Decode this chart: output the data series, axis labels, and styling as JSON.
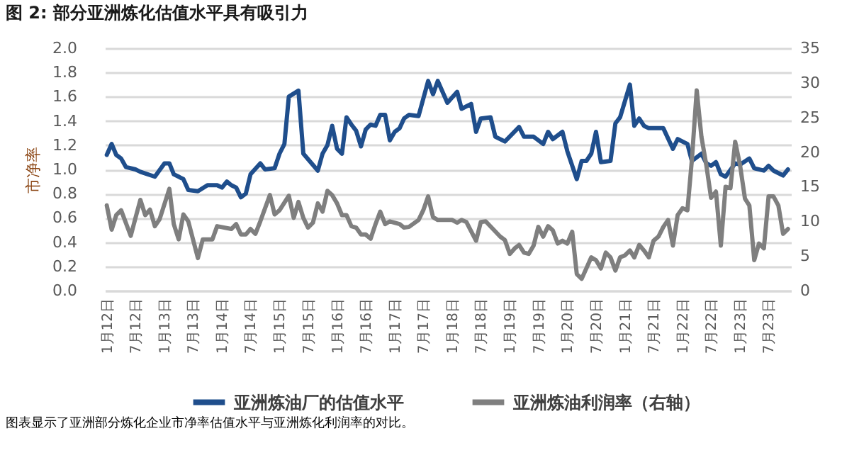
{
  "chart_data": {
    "type": "line",
    "title": "图 2: 部分亚洲炼化估值水平具有吸引力",
    "ylabel": "市净率",
    "annotations": [
      "图表显示了亚洲部分炼化企业市净率估值水平与亚洲炼化利润率的对比。"
    ],
    "xlim": [
      "2011-12-20",
      "2023-11-20"
    ],
    "xticks": [
      {
        "value": "2012-01-01",
        "label": "1月12日"
      },
      {
        "value": "2012-07-01",
        "label": "7月12日"
      },
      {
        "value": "2013-01-01",
        "label": "1月13日"
      },
      {
        "value": "2013-07-01",
        "label": "7月13日"
      },
      {
        "value": "2014-01-01",
        "label": "1月14日"
      },
      {
        "value": "2014-07-01",
        "label": "7月14日"
      },
      {
        "value": "2015-01-01",
        "label": "1月15日"
      },
      {
        "value": "2015-07-01",
        "label": "7月15日"
      },
      {
        "value": "2016-01-01",
        "label": "1月16日"
      },
      {
        "value": "2016-07-01",
        "label": "7月16日"
      },
      {
        "value": "2017-01-01",
        "label": "1月17日"
      },
      {
        "value": "2017-07-01",
        "label": "7月17日"
      },
      {
        "value": "2018-01-01",
        "label": "1月18日"
      },
      {
        "value": "2018-07-01",
        "label": "7月18日"
      },
      {
        "value": "2019-01-01",
        "label": "1月19日"
      },
      {
        "value": "2019-07-01",
        "label": "7月19日"
      },
      {
        "value": "2020-01-01",
        "label": "1月20日"
      },
      {
        "value": "2020-07-01",
        "label": "7月20日"
      },
      {
        "value": "2021-01-01",
        "label": "1月21日"
      },
      {
        "value": "2021-07-01",
        "label": "7月21日"
      },
      {
        "value": "2022-01-01",
        "label": "1月22日"
      },
      {
        "value": "2022-07-01",
        "label": "7月22日"
      },
      {
        "value": "2023-01-01",
        "label": "1月23日"
      },
      {
        "value": "2023-07-01",
        "label": "7月23日"
      }
    ],
    "ylim": [
      0,
      2
    ],
    "yticks": [
      {
        "value": 0,
        "label": "0.0"
      },
      {
        "value": 0.2,
        "label": "0.2"
      },
      {
        "value": 0.4,
        "label": "0.4"
      },
      {
        "value": 0.6,
        "label": "0.6"
      },
      {
        "value": 0.8,
        "label": "0.8"
      },
      {
        "value": 1,
        "label": "1.0"
      },
      {
        "value": 1.2,
        "label": "1.2"
      },
      {
        "value": 1.4,
        "label": "1.4"
      },
      {
        "value": 1.6,
        "label": "1.6"
      },
      {
        "value": 1.8,
        "label": "1.8"
      },
      {
        "value": 2,
        "label": "2.0"
      }
    ],
    "y2lim": [
      0,
      35
    ],
    "y2ticks": [
      0,
      5,
      10,
      15,
      20,
      25,
      30,
      35
    ],
    "grid": "y",
    "legend": "bottom",
    "series": [
      {
        "name": "亚洲炼油厂的估值水平",
        "color": "#1f4e8c",
        "x": [
          "2012-01",
          "2012-02",
          "2012-03",
          "2012-04",
          "2012-05",
          "2012-07",
          "2012-08",
          "2012-11",
          "2013-01",
          "2013-02",
          "2013-03",
          "2013-04",
          "2013-05",
          "2013-06",
          "2013-08",
          "2013-10",
          "2013-12",
          "2014-01",
          "2014-02",
          "2014-03",
          "2014-04",
          "2014-05",
          "2014-06",
          "2014-07",
          "2014-09",
          "2014-10",
          "2014-12",
          "2015-01",
          "2015-02",
          "2015-03",
          "2015-05",
          "2015-06",
          "2015-09",
          "2015-10",
          "2015-11",
          "2015-12",
          "2016-01",
          "2016-02",
          "2016-03",
          "2016-04",
          "2016-05",
          "2016-06",
          "2016-07",
          "2016-08",
          "2016-09",
          "2016-10",
          "2016-11",
          "2016-12",
          "2017-01",
          "2017-02",
          "2017-03",
          "2017-04",
          "2017-06",
          "2017-08",
          "2017-09",
          "2017-10",
          "2017-12",
          "2018-02",
          "2018-03",
          "2018-05",
          "2018-06",
          "2018-07",
          "2018-09",
          "2018-10",
          "2018-12",
          "2019-03",
          "2019-04",
          "2019-06",
          "2019-08",
          "2019-09",
          "2019-10",
          "2019-12",
          "2020-01",
          "2020-03",
          "2020-04",
          "2020-05",
          "2020-06",
          "2020-07",
          "2020-08",
          "2020-10",
          "2020-11",
          "2020-12",
          "2021-02",
          "2021-03",
          "2021-04",
          "2021-05",
          "2021-06",
          "2021-09",
          "2021-11",
          "2021-12",
          "2022-02",
          "2022-03",
          "2022-05",
          "2022-06",
          "2022-07",
          "2022-08",
          "2022-09",
          "2022-10",
          "2022-12",
          "2023-01",
          "2023-03",
          "2023-04",
          "2023-06",
          "2023-07",
          "2023-08",
          "2023-10",
          "2023-11"
        ],
        "values": [
          1.12,
          1.21,
          1.12,
          1.09,
          1.02,
          1.0,
          0.98,
          0.94,
          1.05,
          1.05,
          0.96,
          0.94,
          0.92,
          0.83,
          0.82,
          0.87,
          0.87,
          0.85,
          0.9,
          0.87,
          0.85,
          0.77,
          0.8,
          0.96,
          1.05,
          1.0,
          1.01,
          1.13,
          1.21,
          1.6,
          1.65,
          1.13,
          0.99,
          1.13,
          1.2,
          1.36,
          1.17,
          1.13,
          1.43,
          1.37,
          1.32,
          1.19,
          1.33,
          1.37,
          1.36,
          1.45,
          1.45,
          1.24,
          1.31,
          1.34,
          1.42,
          1.45,
          1.44,
          1.73,
          1.62,
          1.73,
          1.55,
          1.64,
          1.5,
          1.54,
          1.31,
          1.42,
          1.43,
          1.27,
          1.23,
          1.35,
          1.27,
          1.27,
          1.21,
          1.31,
          1.25,
          1.31,
          1.15,
          0.92,
          1.07,
          1.07,
          1.13,
          1.31,
          1.06,
          1.07,
          1.38,
          1.43,
          1.7,
          1.36,
          1.42,
          1.36,
          1.34,
          1.34,
          1.17,
          1.25,
          1.21,
          1.07,
          1.13,
          1.05,
          1.03,
          1.06,
          0.96,
          0.94,
          1.05,
          1.04,
          1.09,
          1.01,
          0.99,
          1.03,
          0.99,
          0.95,
          1.0
        ]
      },
      {
        "name": "亚洲炼油利润率（右轴）",
        "color": "#7f7f7f",
        "axis": "y2",
        "x": [
          "2012-01",
          "2012-02",
          "2012-03",
          "2012-04",
          "2012-06",
          "2012-07",
          "2012-08",
          "2012-09",
          "2012-10",
          "2012-11",
          "2012-12",
          "2013-02",
          "2013-03",
          "2013-04",
          "2013-05",
          "2013-06",
          "2013-08",
          "2013-09",
          "2013-11",
          "2013-12",
          "2014-03",
          "2014-04",
          "2014-05",
          "2014-06",
          "2014-07",
          "2014-08",
          "2014-09",
          "2014-11",
          "2014-12",
          "2015-01",
          "2015-03",
          "2015-04",
          "2015-05",
          "2015-06",
          "2015-07",
          "2015-08",
          "2015-09",
          "2015-10",
          "2015-11",
          "2015-12",
          "2016-01",
          "2016-02",
          "2016-03",
          "2016-04",
          "2016-05",
          "2016-06",
          "2016-07",
          "2016-08",
          "2016-09",
          "2016-10",
          "2016-11",
          "2016-12",
          "2017-02",
          "2017-03",
          "2017-04",
          "2017-06",
          "2017-07",
          "2017-08",
          "2017-09",
          "2017-10",
          "2018-01",
          "2018-02",
          "2018-03",
          "2018-04",
          "2018-06",
          "2018-07",
          "2018-08",
          "2018-11",
          "2018-12",
          "2019-01",
          "2019-02",
          "2019-03",
          "2019-04",
          "2019-05",
          "2019-06",
          "2019-07",
          "2019-08",
          "2019-09",
          "2019-10",
          "2019-11",
          "2019-12",
          "2020-01",
          "2020-02",
          "2020-03",
          "2020-04",
          "2020-06",
          "2020-07",
          "2020-08",
          "2020-09",
          "2020-10",
          "2020-11",
          "2020-12",
          "2021-01",
          "2021-02",
          "2021-03",
          "2021-04",
          "2021-05",
          "2021-06",
          "2021-07",
          "2021-08",
          "2021-09",
          "2021-10",
          "2021-11",
          "2021-12",
          "2022-01",
          "2022-02",
          "2022-03",
          "2022-04",
          "2022-05",
          "2022-06",
          "2022-07",
          "2022-08",
          "2022-09",
          "2022-10",
          "2022-11",
          "2022-12",
          "2023-01",
          "2023-02",
          "2023-03",
          "2023-04",
          "2023-05",
          "2023-06",
          "2023-07",
          "2023-08",
          "2023-09",
          "2023-10",
          "2023-11"
        ],
        "values": [
          12.3,
          8.8,
          10.9,
          11.6,
          7.9,
          10.5,
          13.1,
          10.9,
          11.7,
          9.3,
          10.3,
          14.7,
          9.6,
          7.4,
          11.0,
          10.0,
          4.7,
          7.4,
          7.4,
          9.3,
          8.9,
          9.6,
          8.1,
          8.1,
          8.9,
          8.2,
          10.0,
          13.8,
          11.0,
          11.6,
          13.7,
          10.5,
          12.8,
          10.5,
          9.1,
          9.8,
          12.6,
          11.4,
          14.4,
          13.8,
          12.6,
          10.9,
          10.9,
          9.3,
          9.1,
          8.1,
          8.1,
          7.5,
          9.6,
          11.4,
          9.6,
          10.0,
          9.6,
          9.1,
          9.2,
          10.2,
          11.6,
          13.6,
          10.6,
          10.2,
          10.2,
          9.8,
          10.2,
          9.9,
          7.2,
          9.9,
          10.0,
          7.8,
          7.3,
          5.3,
          6.1,
          6.6,
          5.5,
          5.3,
          6.5,
          9.2,
          7.8,
          9.3,
          8.7,
          6.8,
          7.2,
          6.8,
          8.5,
          2.4,
          1.7,
          4.8,
          4.4,
          3.2,
          5.5,
          4.8,
          2.9,
          4.8,
          5.1,
          5.8,
          4.8,
          6.6,
          5.8,
          4.8,
          7.2,
          7.8,
          9.2,
          10.2,
          6.5,
          10.9,
          11.9,
          11.6,
          18.8,
          28.9,
          22.2,
          18.1,
          13.4,
          14.3,
          6.5,
          15.0,
          14.8,
          21.5,
          18.1,
          13.3,
          12.3,
          4.4,
          6.8,
          6.1,
          13.6,
          13.6,
          12.3,
          8.2,
          8.9
        ]
      }
    ]
  }
}
